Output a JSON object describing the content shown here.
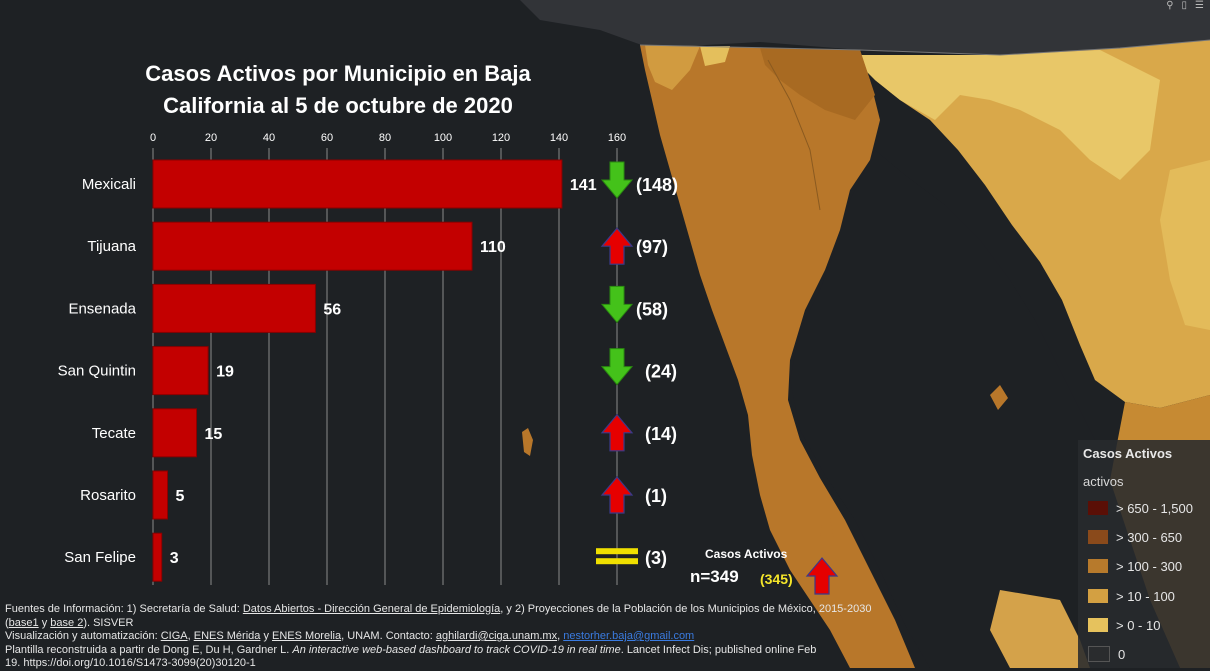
{
  "chart_data": {
    "type": "bar",
    "orientation": "horizontal",
    "title_lines": [
      "Casos Activos por Municipio en Baja",
      "California al 5 de octubre de 2020"
    ],
    "categories": [
      "Mexicali",
      "Tijuana",
      "Ensenada",
      "San Quintin",
      "Tecate",
      "Rosarito",
      "San Felipe"
    ],
    "values": [
      141,
      110,
      56,
      19,
      15,
      5,
      3
    ],
    "previous_labels": [
      "(148)",
      "(97)",
      "(58)",
      "(24)",
      "(14)",
      "(1)",
      "(3)"
    ],
    "trend": [
      "down",
      "up",
      "down",
      "down",
      "up",
      "up",
      "equal"
    ],
    "xlim": [
      0,
      160
    ],
    "xticks": [
      "0",
      "20",
      "40",
      "60",
      "80",
      "100",
      "120",
      "140",
      "160"
    ],
    "xtick_values": [
      0,
      20,
      40,
      60,
      80,
      100,
      120,
      140,
      160
    ],
    "grid": true,
    "bar_color": "#c30000",
    "up_color": "#e60000",
    "down_color": "#44c21a",
    "equal_color": "#f0e000"
  },
  "total": {
    "label": "Casos Activos",
    "value": "n=349",
    "previous": "(345)",
    "trend": "up"
  },
  "legend": {
    "title": "Casos Activos",
    "subtitle": "activos",
    "items": [
      {
        "label": "> 650 - 1,500",
        "color": "#5a0f06"
      },
      {
        "label": "> 300 - 650",
        "color": "#8a4a1b"
      },
      {
        "label": "> 100 - 300",
        "color": "#b77a2c"
      },
      {
        "label": "> 10 - 100",
        "color": "#d3a042"
      },
      {
        "label": "> 0 - 10",
        "color": "#e6c25d"
      },
      {
        "label": "0",
        "color": "#2a2c2e"
      }
    ]
  },
  "footer": {
    "line1_pre": "Fuentes de Información: 1) Secretaría de Salud: ",
    "line1_link": "Datos Abiertos - Dirección General de Epidemiología",
    "line1_post": ", y 2) Proyecciones de la Población de los Municipios de México, 2015-2030",
    "line2_open": "(",
    "line2_base1": "base1",
    "line2_y": " y ",
    "line2_base2": "base 2",
    "line2_post": "). SISVER",
    "line3_pre": " Visualización y automatización: ",
    "line3_ciga": "CIGA",
    "line3_sep1": ", ",
    "line3_merida": "ENES Mérida",
    "line3_y": " y ",
    "line3_morelia": "ENES Morelia",
    "line3_mid": ", UNAM. Contacto: ",
    "line3_email1": "aghilardi@ciga.unam.mx",
    "line3_sep2": ", ",
    "line3_email2": "nestorher.baja@gmail.com",
    "line4_pre": " Plantilla reconstruida a partir de Dong E, Du H, Gardner L. ",
    "line4_italic": "An interactive web-based dashboard to track COVID-19 in real time",
    "line4_post": ". Lancet Infect Dis; published online Feb",
    "line5": "19. https://doi.org/10.1016/S1473-3099(20)30120-1"
  }
}
